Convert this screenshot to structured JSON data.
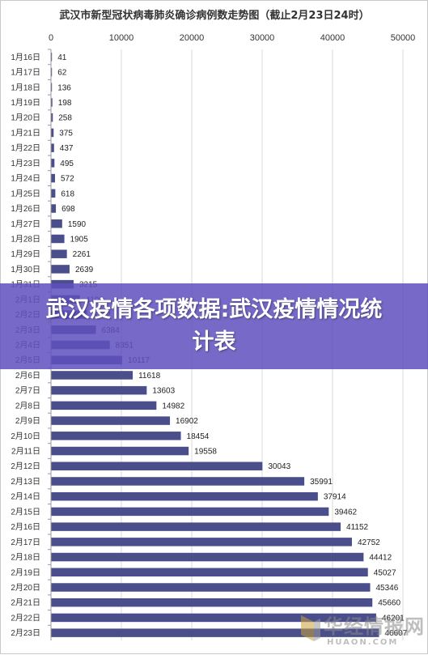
{
  "chart_data": {
    "type": "bar",
    "orientation": "horizontal",
    "title": "武汉市新型冠状病毒肺炎确诊病例数走势图（截止2月23日24时）",
    "xlim": [
      0,
      50000
    ],
    "x_ticks": [
      "0",
      "10000",
      "20000",
      "30000",
      "40000",
      "50000"
    ],
    "grid": true,
    "legend": "none",
    "bar_color": "#4a4f8c",
    "categories": [
      "1月16日",
      "1月17日",
      "1月18日",
      "1月19日",
      "1月20日",
      "1月21日",
      "1月22日",
      "1月23日",
      "1月24日",
      "1月25日",
      "1月26日",
      "1月27日",
      "1月28日",
      "1月29日",
      "1月30日",
      "1月31日",
      "2月1日",
      "2月2日",
      "2月3日",
      "2月4日",
      "2月5日",
      "2月6日",
      "2月7日",
      "2月8日",
      "2月9日",
      "2月10日",
      "2月11日",
      "2月12日",
      "2月13日",
      "2月14日",
      "2月15日",
      "2月16日",
      "2月17日",
      "2月18日",
      "2月19日",
      "2月20日",
      "2月21日",
      "2月22日",
      "2月23日"
    ],
    "values": [
      41,
      62,
      136,
      198,
      258,
      375,
      437,
      495,
      572,
      618,
      698,
      1590,
      1905,
      2261,
      2639,
      3215,
      4109,
      5142,
      6384,
      8351,
      10117,
      11618,
      13603,
      14982,
      16902,
      18454,
      19558,
      30043,
      35991,
      37914,
      39462,
      41152,
      42752,
      44412,
      45027,
      45346,
      45660,
      46201,
      46607
    ],
    "labels": [
      "41",
      "62",
      "136",
      "198",
      "258",
      "375",
      "437",
      "495",
      "572",
      "618",
      "698",
      "1590",
      "1905",
      "2261",
      "2639",
      "3215",
      "4109",
      "5142",
      "6384",
      "8351",
      "10117",
      "11618",
      "13603",
      "14982",
      "16902",
      "18454",
      "19558",
      "30043",
      "35991",
      "37914",
      "39462",
      "41152",
      "42752",
      "44412",
      "45027",
      "45346",
      "45660",
      "46201",
      "46607"
    ]
  },
  "overlay": {
    "text": "武汉疫情各项数据:武汉疫情情况统计表",
    "color": "#5f50be"
  },
  "watermark": {
    "cn": "华经情报网",
    "en": "HUAON.COM"
  }
}
